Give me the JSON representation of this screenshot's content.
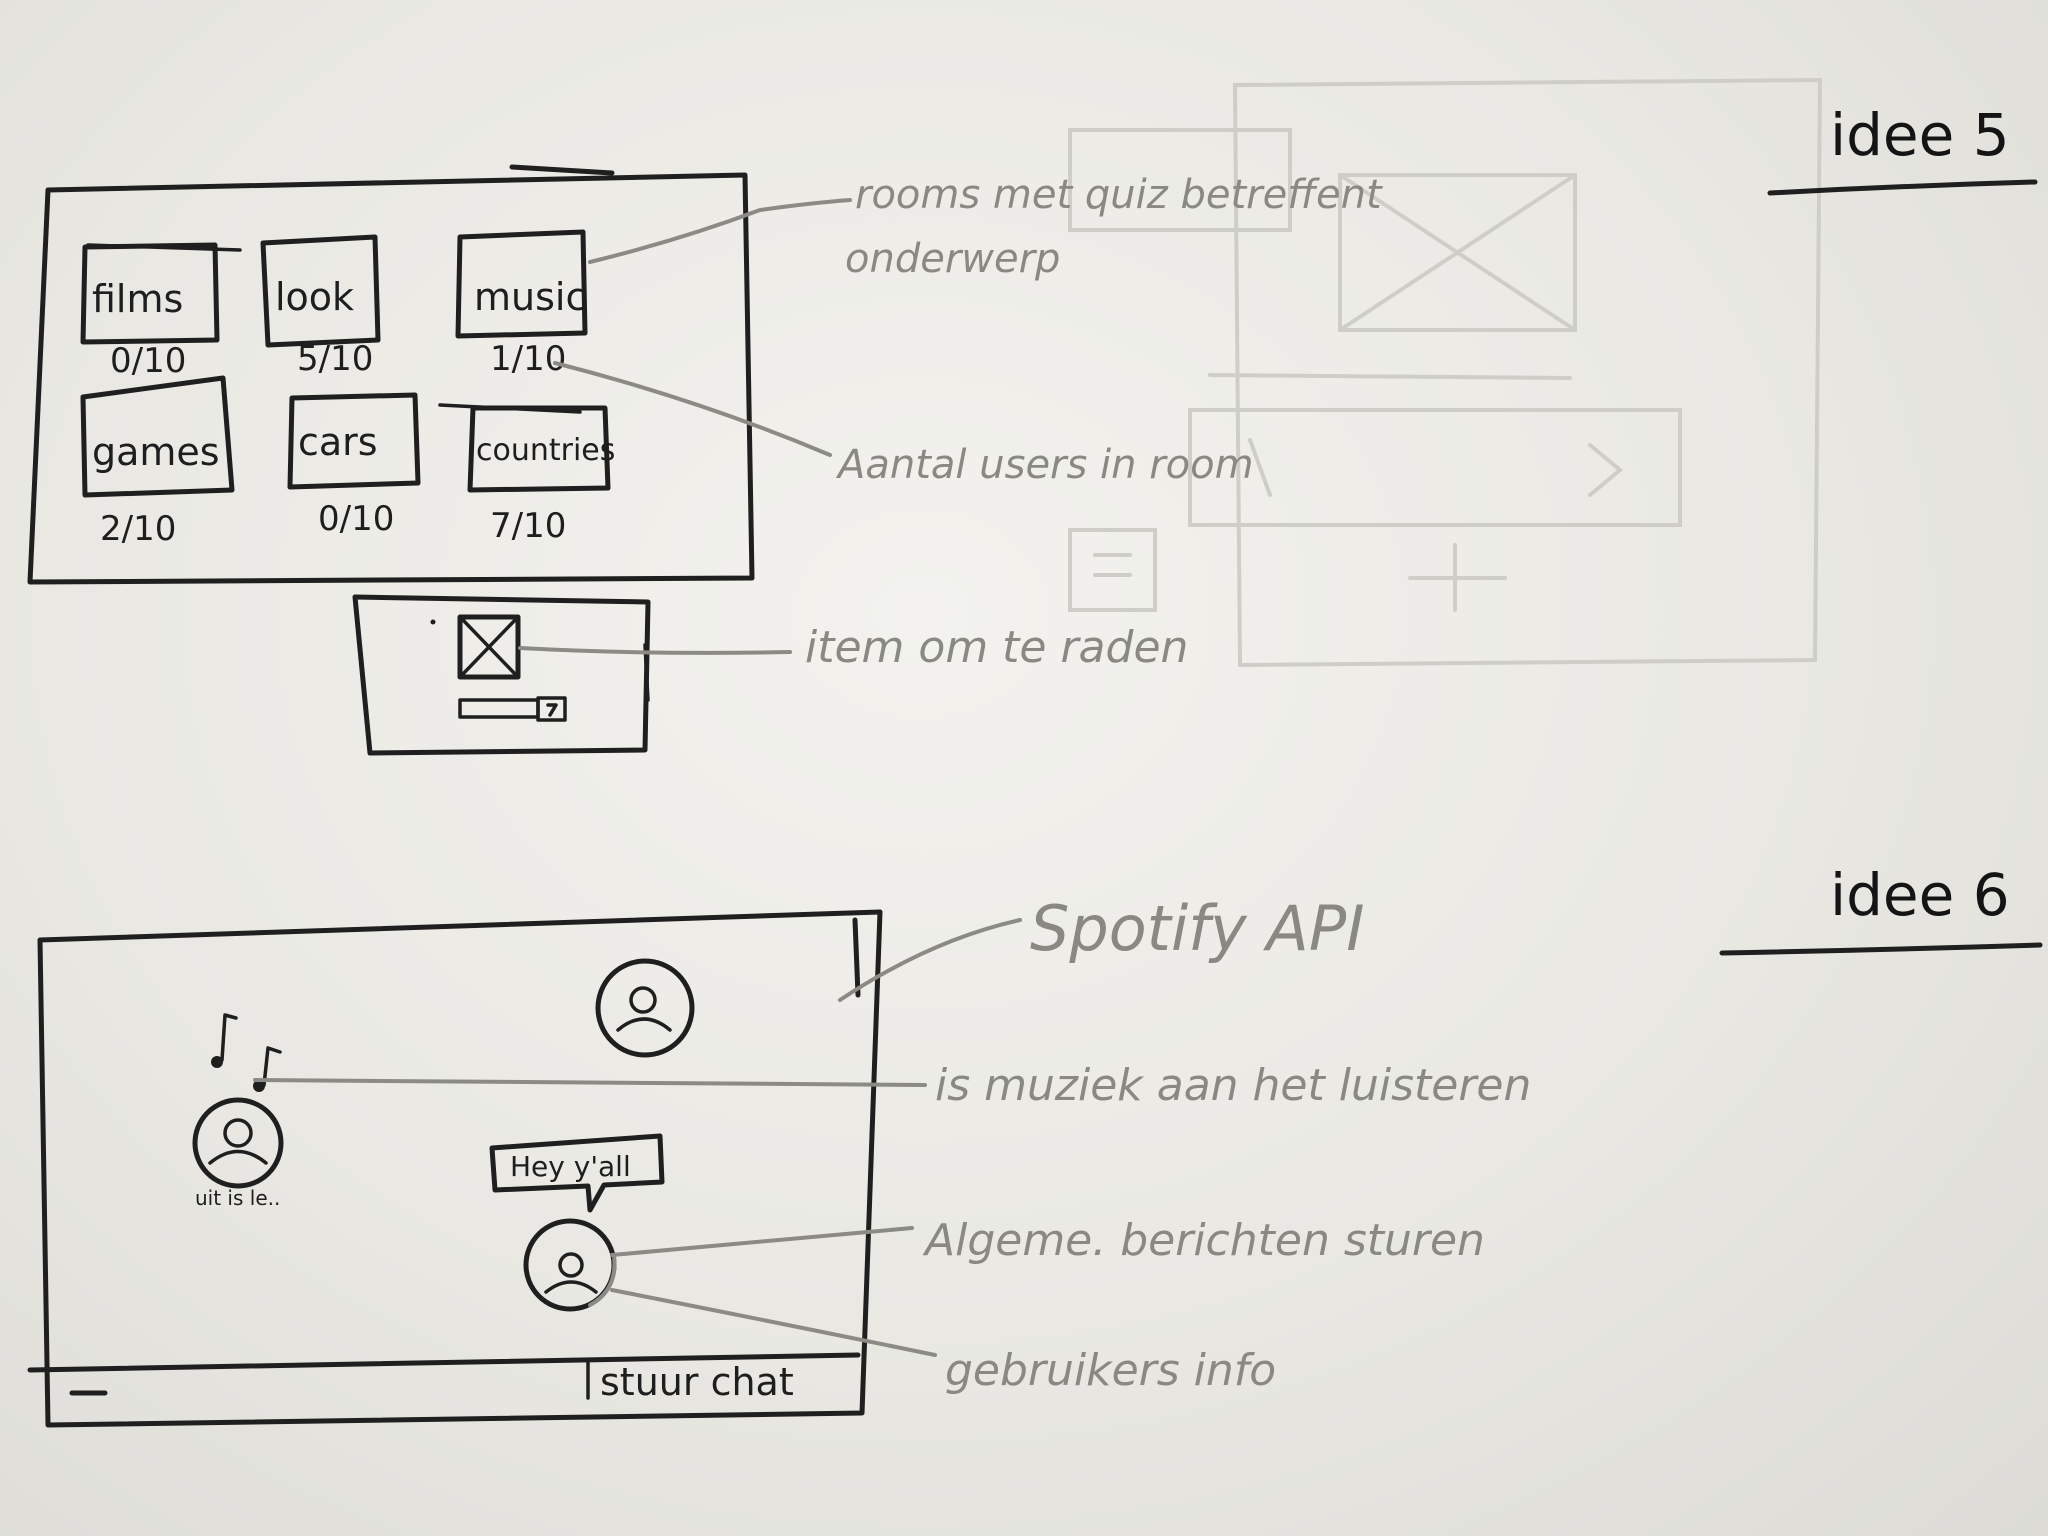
{
  "headings": {
    "idea5": "idee 5",
    "idea6": "idee 6"
  },
  "rooms_panel": {
    "rooms": [
      {
        "name": "films",
        "users": "0/10"
      },
      {
        "name": "look",
        "users": "5/10"
      },
      {
        "name": "music",
        "users": "1/10"
      },
      {
        "name": "games",
        "users": "2/10"
      },
      {
        "name": "cars",
        "users": "0/10"
      },
      {
        "name": "countries",
        "users": "7/10"
      }
    ]
  },
  "annotations_idea5": {
    "rooms": [
      "rooms met quiz betreffent",
      "onderwerp"
    ],
    "users": "Aantal users in room",
    "item": "item om te raden"
  },
  "chat_panel": {
    "note_glyph": "♪ ♪",
    "user_label": "uit is le..",
    "speech_bubble": "Hey y'all",
    "send_label": "stuur chat",
    "minimize": "—"
  },
  "annotations_idea6": {
    "api": "Spotify API",
    "listening": "is muziek aan het luisteren",
    "messages": "Algeme. berichten sturen",
    "user_info": "gebruikers info"
  },
  "colors": {
    "ink": "#1f1f1f",
    "pencil": "#8a8882",
    "paper": "#eeede9"
  }
}
